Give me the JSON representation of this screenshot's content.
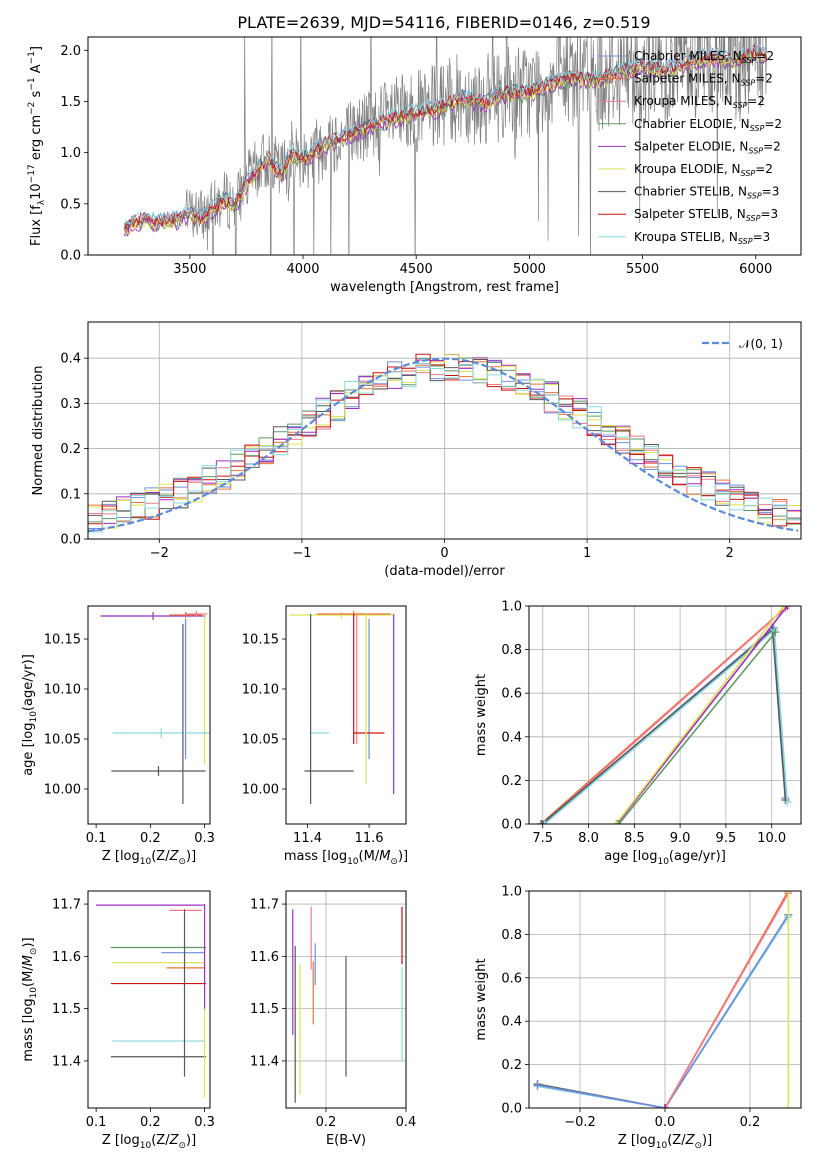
{
  "colors": {
    "Chabrier MILES": "#6e8fde",
    "Salpeter MILES": "#e8733a",
    "Kroupa MILES": "#f07a8c",
    "Chabrier ELODIE": "#5f9966",
    "Salpeter ELODIE": "#9c2fc4",
    "Kroupa ELODIE": "#dde354",
    "Chabrier STELIB": "#595959",
    "Salpeter STELIB": "#cc1111",
    "Kroupa STELIB": "#8ad8dc",
    "normal": "#5b8bd6"
  },
  "chart_data": [
    {
      "id": "spectrum",
      "type": "line",
      "title": "PLATE=2639, MJD=54116, FIBERID=0146, z=0.519",
      "xlabel": "wavelength [Angstrom, rest frame]",
      "ylabel": "Flux [f_λ10^-17 erg cm^-2 s^-1 A^-1]",
      "xlim": [
        3050,
        6200
      ],
      "ylim": [
        0,
        2.13
      ],
      "xticks": [
        3500,
        4000,
        4500,
        5000,
        5500,
        6000
      ],
      "yticks": [
        0.0,
        0.5,
        1.0,
        1.5,
        2.0
      ],
      "legend_position": "top-right",
      "data_series": {
        "name": "",
        "color": "#808080",
        "x": [
          3210,
          3250,
          3300,
          3350,
          3400,
          3450,
          3500,
          3550,
          3600,
          3650,
          3700,
          3750,
          3800,
          3850,
          3900,
          3950,
          4000,
          4100,
          4200,
          4300,
          4400,
          4500,
          4600,
          4700,
          4800,
          4900,
          5000,
          5100,
          5200,
          5300,
          5400,
          5500,
          5600,
          5700,
          5800,
          5900,
          6000,
          6050
        ],
        "y": [
          0.25,
          0.33,
          0.36,
          0.33,
          0.35,
          0.36,
          0.42,
          0.38,
          0.45,
          0.55,
          0.5,
          0.72,
          0.85,
          0.95,
          0.8,
          1.0,
          0.95,
          1.1,
          1.18,
          1.28,
          1.35,
          1.4,
          1.45,
          1.55,
          1.5,
          1.6,
          1.6,
          1.7,
          1.75,
          1.72,
          1.8,
          1.85,
          1.82,
          1.9,
          1.95,
          1.9,
          2.0,
          1.95
        ],
        "noise_start": 3480
      },
      "series": [
        {
          "name": "Chabrier MILES, N_SSP=2",
          "label_text": "Chabrier MILES, N",
          "sub": "SSP",
          "suffix": "=2",
          "offset": 0.02
        },
        {
          "name": "Salpeter MILES, N_SSP=2",
          "label_text": "Salpeter MILES, N",
          "sub": "SSP",
          "suffix": "=2",
          "offset": -0.03
        },
        {
          "name": "Kroupa MILES, N_SSP=2",
          "label_text": "Kroupa MILES, N",
          "sub": "SSP",
          "suffix": "=2",
          "offset": 0.0
        },
        {
          "name": "Chabrier ELODIE, N_SSP=2",
          "label_text": "Chabrier ELODIE, N",
          "sub": "SSP",
          "suffix": "=2",
          "offset": -0.05
        },
        {
          "name": "Salpeter ELODIE, N_SSP=2",
          "label_text": "Salpeter ELODIE, N",
          "sub": "SSP",
          "suffix": "=2",
          "offset": -0.06
        },
        {
          "name": "Kroupa ELODIE, N_SSP=2",
          "label_text": "Kroupa ELODIE, N",
          "sub": "SSP",
          "suffix": "=2",
          "offset": -0.04
        },
        {
          "name": "Chabrier STELIB, N_SSP=3",
          "label_text": "Chabrier STELIB, N",
          "sub": "SSP",
          "suffix": "=3",
          "offset": 0.01
        },
        {
          "name": "Salpeter STELIB, N_SSP=3",
          "label_text": "Salpeter STELIB, N",
          "sub": "SSP",
          "suffix": "=3",
          "offset": 0.0
        },
        {
          "name": "Kroupa STELIB, N_SSP=3",
          "label_text": "Kroupa STELIB, N",
          "sub": "SSP",
          "suffix": "=3",
          "offset": 0.03
        }
      ]
    },
    {
      "id": "residuals",
      "type": "histogram",
      "xlabel": "(data-model)/error",
      "ylabel": "Normed distribution",
      "xlim": [
        -2.5,
        2.5
      ],
      "ylim": [
        0,
        0.48
      ],
      "xticks": [
        -2,
        -1,
        0,
        1,
        2
      ],
      "yticks": [
        0.0,
        0.1,
        0.2,
        0.3,
        0.4
      ],
      "grid": true,
      "legend": {
        "label": "𝒩(0, 1)",
        "position": "top-right"
      },
      "bin_width": 0.1
    },
    {
      "id": "age_vs_Z",
      "type": "errorbar",
      "xlabel": "Z [log10(Z/Z⊙)]",
      "ylabel": "age  [log10(age/yr)]",
      "xlim": [
        0.085,
        0.31
      ],
      "ylim": [
        9.965,
        10.183
      ],
      "xticks": [
        0.1,
        0.2,
        0.3
      ],
      "yticks": [
        10.0,
        10.05,
        10.1,
        10.15
      ],
      "points": [
        {
          "s": "Salpeter ELODIE",
          "x": 0.205,
          "xerr": 0.097,
          "y": 10.173,
          "yerr": 0.004
        },
        {
          "s": "Salpeter MILES",
          "x": 0.265,
          "xerr": 0.03,
          "y": 10.174,
          "yerr": 0.003
        },
        {
          "s": "Kroupa MILES",
          "x": 0.285,
          "xerr": 0.02,
          "y": 10.175,
          "yerr": 0.003
        },
        {
          "s": "Kroupa ELODIE",
          "x": 0.3,
          "xerr": 0.0,
          "y": 10.1,
          "yerr": 0.075
        },
        {
          "s": "Chabrier MILES",
          "x": 0.265,
          "xerr": 0.0,
          "y": 10.1,
          "yerr": 0.07
        },
        {
          "s": "Kroupa STELIB",
          "x": 0.22,
          "xerr": 0.09,
          "y": 10.056,
          "yerr": 0.005
        },
        {
          "s": "Chabrier STELIB",
          "x": 0.215,
          "xerr": 0.087,
          "y": 10.018,
          "yerr": 0.005
        },
        {
          "s": "Chabrier STELIB",
          "x": 0.26,
          "xerr": 0.0,
          "y": 10.075,
          "yerr": 0.09
        }
      ]
    },
    {
      "id": "age_vs_mass",
      "type": "errorbar",
      "xlabel": "mass [log10(M/M⊙)]",
      "ylabel": "",
      "xlim": [
        11.33,
        11.72
      ],
      "ylim": [
        9.965,
        10.183
      ],
      "xticks": [
        11.4,
        11.6
      ],
      "yticks": [
        10.0,
        10.05,
        10.1,
        10.15
      ],
      "points": [
        {
          "s": "Kroupa ELODIE",
          "x": 11.51,
          "xerr": 0.17,
          "y": 10.174,
          "yerr": 0.003
        },
        {
          "s": "Salpeter MILES",
          "x": 11.55,
          "xerr": 0.12,
          "y": 10.175,
          "yerr": 0.003
        },
        {
          "s": "Salpeter ELODIE",
          "x": 11.68,
          "xerr": 0.0,
          "y": 10.085,
          "yerr": 0.09
        },
        {
          "s": "Chabrier MILES",
          "x": 11.6,
          "xerr": 0.0,
          "y": 10.1,
          "yerr": 0.07
        },
        {
          "s": "Kroupa MILES",
          "x": 11.56,
          "xerr": 0.0,
          "y": 10.11,
          "yerr": 0.065
        },
        {
          "s": "Salpeter STELIB",
          "x": 11.6,
          "xerr": 0.05,
          "y": 10.056,
          "yerr": 0.0
        },
        {
          "s": "Salpeter STELIB",
          "x": 11.55,
          "xerr": 0.0,
          "y": 10.11,
          "yerr": 0.065
        },
        {
          "s": "Kroupa STELIB",
          "x": 11.44,
          "xerr": 0.03,
          "y": 10.056,
          "yerr": 0.0
        },
        {
          "s": "Chabrier STELIB",
          "x": 11.41,
          "xerr": 0.0,
          "y": 10.08,
          "yerr": 0.095
        },
        {
          "s": "Chabrier STELIB",
          "x": 11.47,
          "xerr": 0.08,
          "y": 10.018,
          "yerr": 0.0
        },
        {
          "s": "Kroupa ELODIE",
          "x": 11.59,
          "xerr": 0.0,
          "y": 10.09,
          "yerr": 0.085
        }
      ]
    },
    {
      "id": "massweight_vs_age",
      "type": "line",
      "xlabel": "age  [log10(age/yr)]",
      "ylabel": "mass weight",
      "xlim": [
        7.35,
        10.32
      ],
      "ylim": [
        0,
        1.0
      ],
      "xticks": [
        7.5,
        8.0,
        8.5,
        9.0,
        9.5,
        10.0
      ],
      "yticks": [
        0.0,
        0.2,
        0.4,
        0.6,
        0.8,
        1.0
      ],
      "grid": true,
      "lines": [
        {
          "s": "Salpeter MILES",
          "x": [
            7.48,
            10.17
          ],
          "y": [
            0.0,
            1.0
          ]
        },
        {
          "s": "Kroupa MILES",
          "x": [
            7.5,
            10.15
          ],
          "y": [
            0.0,
            0.99
          ]
        },
        {
          "s": "Chabrier MILES",
          "x": [
            7.5,
            10.02,
            10.15
          ],
          "y": [
            0.0,
            0.9,
            0.12
          ]
        },
        {
          "s": "Chabrier STELIB",
          "x": [
            7.49,
            10.01,
            10.15
          ],
          "y": [
            0.0,
            0.89,
            0.11
          ]
        },
        {
          "s": "Kroupa STELIB",
          "x": [
            7.52,
            10.03,
            10.17
          ],
          "y": [
            0.0,
            0.89,
            0.1
          ]
        },
        {
          "s": "Salpeter ELODIE",
          "x": [
            8.31,
            10.17
          ],
          "y": [
            0.0,
            1.0
          ]
        },
        {
          "s": "Kroupa ELODIE",
          "x": [
            8.3,
            10.13
          ],
          "y": [
            0.0,
            1.0
          ]
        },
        {
          "s": "Chabrier ELODIE",
          "x": [
            8.33,
            10.04
          ],
          "y": [
            0.0,
            0.88
          ]
        }
      ]
    },
    {
      "id": "mass_vs_Z",
      "type": "errorbar",
      "xlabel": "Z [log10(Z/Z⊙)]",
      "ylabel": "mass [log10(M/M⊙)]",
      "xlim": [
        0.085,
        0.31
      ],
      "ylim": [
        11.31,
        11.725
      ],
      "xticks": [
        0.1,
        0.2,
        0.3
      ],
      "yticks": [
        11.4,
        11.5,
        11.6,
        11.7
      ],
      "points": [
        {
          "s": "Salpeter ELODIE",
          "x": 0.2,
          "xerr": 0.1,
          "y": 11.698,
          "yerr": 0.0
        },
        {
          "s": "Kroupa MILES",
          "x": 0.265,
          "xerr": 0.03,
          "y": 11.688,
          "yerr": 0.0
        },
        {
          "s": "Chabrier ELODIE",
          "x": 0.215,
          "xerr": 0.088,
          "y": 11.617,
          "yerr": 0.0
        },
        {
          "s": "Chabrier MILES",
          "x": 0.26,
          "xerr": 0.04,
          "y": 11.607,
          "yerr": 0.0
        },
        {
          "s": "Kroupa ELODIE",
          "x": 0.215,
          "xerr": 0.085,
          "y": 11.588,
          "yerr": 0.0
        },
        {
          "s": "Salpeter MILES",
          "x": 0.265,
          "xerr": 0.035,
          "y": 11.578,
          "yerr": 0.0
        },
        {
          "s": "Salpeter STELIB",
          "x": 0.215,
          "xerr": 0.088,
          "y": 11.548,
          "yerr": 0.0
        },
        {
          "s": "Kroupa STELIB",
          "x": 0.215,
          "xerr": 0.085,
          "y": 11.438,
          "yerr": 0.0
        },
        {
          "s": "Chabrier STELIB",
          "x": 0.215,
          "xerr": 0.088,
          "y": 11.408,
          "yerr": 0.0
        },
        {
          "s": "Chabrier STELIB",
          "x": 0.263,
          "xerr": 0.0,
          "y": 11.53,
          "yerr": 0.16
        },
        {
          "s": "Kroupa ELODIE",
          "x": 0.3,
          "xerr": 0.0,
          "y": 11.46,
          "yerr": 0.13
        },
        {
          "s": "Salpeter ELODIE",
          "x": 0.3,
          "xerr": 0.0,
          "y": 11.6,
          "yerr": 0.1
        }
      ]
    },
    {
      "id": "mass_vs_ebv",
      "type": "errorbar",
      "xlabel": "E(B-V)",
      "ylabel": "",
      "xlim": [
        0.1,
        0.4
      ],
      "ylim": [
        11.31,
        11.725
      ],
      "xticks": [
        0.2,
        0.4
      ],
      "yticks": [
        11.4,
        11.5,
        11.6,
        11.7
      ],
      "points": [
        {
          "s": "Salpeter ELODIE",
          "x": 0.117,
          "xerr": 0.0,
          "y": 11.57,
          "yerr": 0.12
        },
        {
          "s": "Chabrier STELIB",
          "x": 0.123,
          "xerr": 0.0,
          "y": 11.47,
          "yerr": 0.15
        },
        {
          "s": "Kroupa ELODIE",
          "x": 0.135,
          "xerr": 0.0,
          "y": 11.46,
          "yerr": 0.125
        },
        {
          "s": "Kroupa MILES",
          "x": 0.163,
          "xerr": 0.0,
          "y": 11.635,
          "yerr": 0.06
        },
        {
          "s": "Salpeter MILES",
          "x": 0.168,
          "xerr": 0.0,
          "y": 11.53,
          "yerr": 0.06
        },
        {
          "s": "Chabrier MILES",
          "x": 0.173,
          "xerr": 0.0,
          "y": 11.585,
          "yerr": 0.04
        },
        {
          "s": "Chabrier STELIB",
          "x": 0.25,
          "xerr": 0.0,
          "y": 11.485,
          "yerr": 0.115
        },
        {
          "s": "Salpeter STELIB",
          "x": 0.39,
          "xerr": 0.0,
          "y": 11.64,
          "yerr": 0.055
        },
        {
          "s": "Kroupa STELIB",
          "x": 0.39,
          "xerr": 0.0,
          "y": 11.49,
          "yerr": 0.09
        }
      ]
    },
    {
      "id": "massweight_vs_Z",
      "type": "line",
      "xlabel": "Z [log10(Z/Z⊙)]",
      "ylabel": "mass weight",
      "xlim": [
        -0.32,
        0.32
      ],
      "ylim": [
        0,
        1.0
      ],
      "xticks": [
        -0.2,
        0.0,
        0.2
      ],
      "yticks": [
        0.0,
        0.2,
        0.4,
        0.6,
        0.8,
        1.0
      ],
      "grid": true,
      "lines": [
        {
          "s": "Chabrier STELIB",
          "x": [
            -0.3,
            0.0,
            0.29
          ],
          "y": [
            0.11,
            0.0,
            0.89
          ]
        },
        {
          "s": "Kroupa STELIB",
          "x": [
            -0.3,
            0.0,
            0.29
          ],
          "y": [
            0.1,
            0.0,
            0.88
          ]
        },
        {
          "s": "Chabrier MILES",
          "x": [
            -0.3,
            0.0,
            0.29
          ],
          "y": [
            0.105,
            0.0,
            0.89
          ]
        },
        {
          "s": "Salpeter MILES",
          "x": [
            0.0,
            0.29
          ],
          "y": [
            0.0,
            1.0
          ]
        },
        {
          "s": "Kroupa MILES",
          "x": [
            0.0,
            0.29
          ],
          "y": [
            0.0,
            0.99
          ]
        },
        {
          "s": "Kroupa ELODIE",
          "x": [
            0.29,
            0.29
          ],
          "y": [
            0.0,
            1.0
          ]
        },
        {
          "s": "Salpeter ELODIE",
          "x": [
            0.0,
            0.0
          ],
          "y": [
            0.0,
            0.0
          ]
        }
      ]
    }
  ]
}
